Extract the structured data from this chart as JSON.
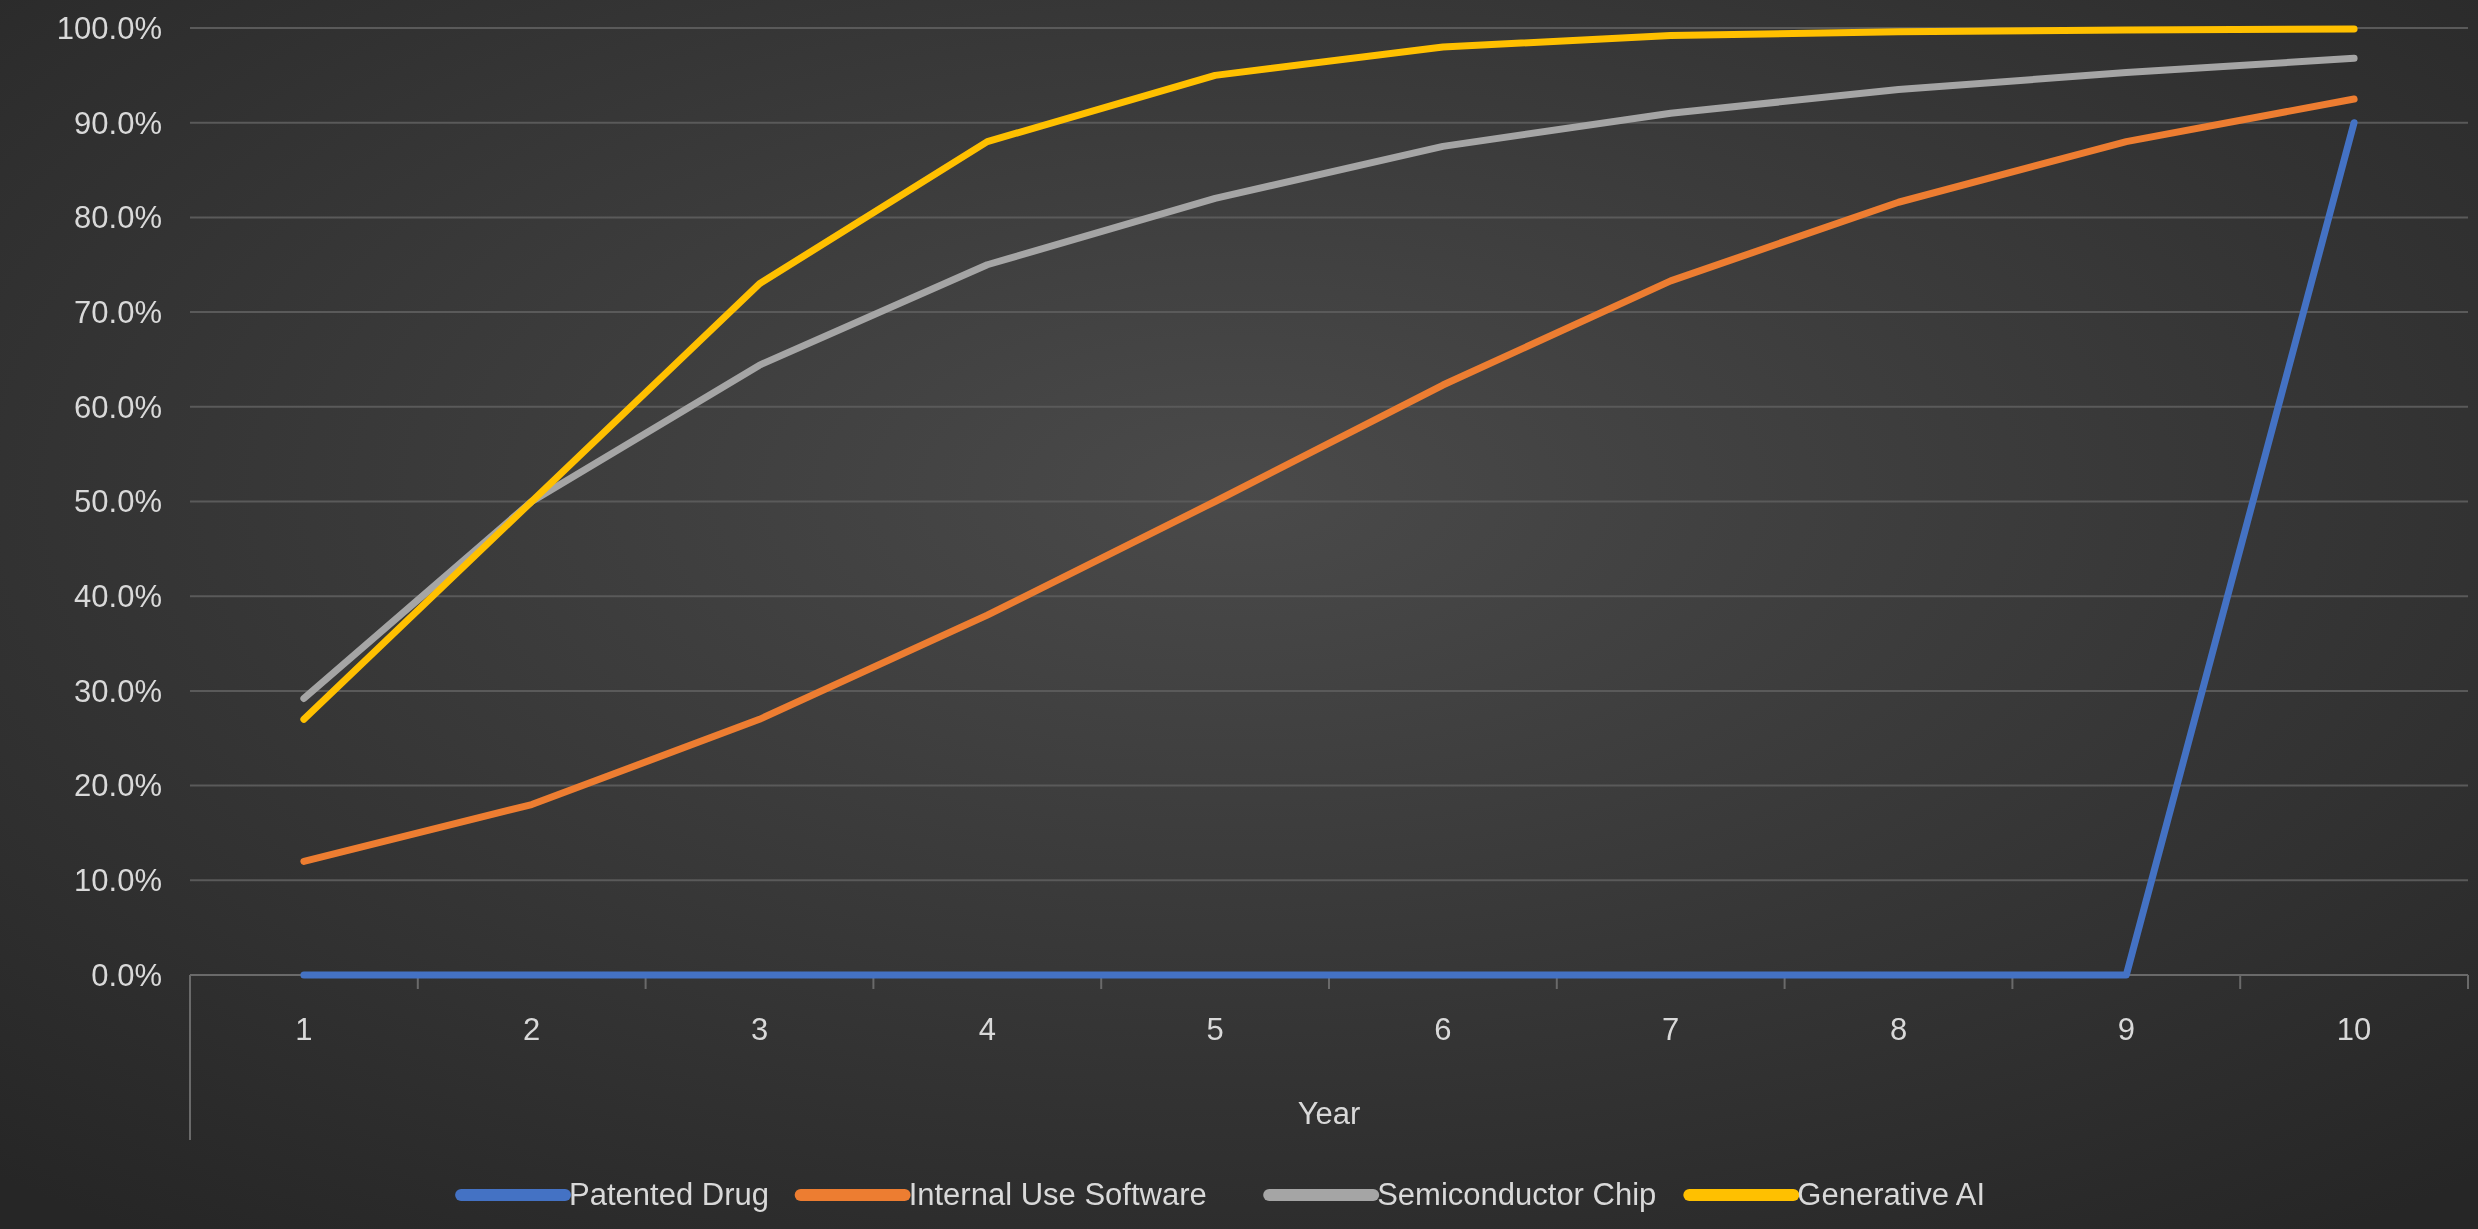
{
  "chart_data": {
    "type": "line",
    "xlabel": "Year",
    "categories": [
      "1",
      "2",
      "3",
      "4",
      "5",
      "6",
      "7",
      "8",
      "9",
      "10"
    ],
    "series": [
      {
        "name": "Patented Drug",
        "color": "#4472c4",
        "values": [
          0,
          0,
          0,
          0,
          0,
          0,
          0,
          0,
          0,
          90
        ]
      },
      {
        "name": "Internal Use Software",
        "color": "#ed7d31",
        "values": [
          12,
          18,
          27,
          38,
          50,
          62.3,
          73.3,
          81.6,
          88,
          92.5
        ]
      },
      {
        "name": "Semiconductor Chip",
        "color": "#a5a5a5",
        "values": [
          29.2,
          50,
          64.4,
          75,
          82,
          87.5,
          91,
          93.5,
          95.3,
          96.8
        ]
      },
      {
        "name": "Generative AI",
        "color": "#ffc000",
        "values": [
          27,
          50,
          73,
          88,
          95,
          98,
          99.2,
          99.6,
          99.8,
          99.9
        ]
      }
    ],
    "ylim": [
      0,
      100
    ],
    "yticks": [
      {
        "value": 0,
        "label": "0.0%"
      },
      {
        "value": 10,
        "label": "10.0%"
      },
      {
        "value": 20,
        "label": "20.0%"
      },
      {
        "value": 30,
        "label": "30.0%"
      },
      {
        "value": 40,
        "label": "40.0%"
      },
      {
        "value": 50,
        "label": "50.0%"
      },
      {
        "value": 60,
        "label": "60.0%"
      },
      {
        "value": 70,
        "label": "70.0%"
      },
      {
        "value": 80,
        "label": "80.0%"
      },
      {
        "value": 90,
        "label": "90.0%"
      },
      {
        "value": 100,
        "label": "100.0%"
      }
    ],
    "grid": "y",
    "legend": "bottom",
    "marker": "none",
    "line_style": "solid"
  }
}
